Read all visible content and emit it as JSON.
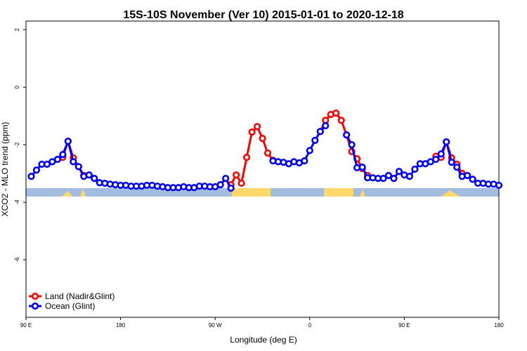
{
  "chart_data": {
    "type": "line",
    "title": "15S-10S November (Ver 10)   2015-01-01 to 2020-12-18",
    "xlabel": "Longitude (deg E)",
    "ylabel": "XCO2 - MLO trend (ppm)",
    "xlim": [
      90,
      540
    ],
    "ylim": [
      -8,
      2.3
    ],
    "xticks": [
      {
        "value": 90,
        "label": "90 E"
      },
      {
        "value": 180,
        "label": "180"
      },
      {
        "value": 270,
        "label": "90 W"
      },
      {
        "value": 360,
        "label": "0"
      },
      {
        "value": 450,
        "label": "90 E"
      },
      {
        "value": 540,
        "label": "180"
      }
    ],
    "yticks": [
      -6,
      -4,
      -2,
      0,
      2
    ],
    "legend": "bottom-left",
    "x": [
      95,
      100,
      105,
      110,
      115,
      120,
      125,
      130,
      135,
      140,
      145,
      150,
      155,
      160,
      165,
      170,
      175,
      180,
      185,
      190,
      195,
      200,
      205,
      210,
      215,
      220,
      225,
      230,
      235,
      240,
      245,
      250,
      255,
      260,
      265,
      270,
      275,
      280,
      285,
      290,
      295,
      300,
      305,
      310,
      315,
      320,
      325,
      330,
      335,
      340,
      345,
      350,
      355,
      360,
      365,
      370,
      375,
      380,
      385,
      390,
      395,
      400,
      405,
      410,
      415,
      420,
      425,
      430,
      435,
      440,
      445,
      450,
      455,
      460,
      465,
      470,
      475,
      480,
      485,
      490,
      495,
      500,
      505,
      510,
      515,
      520,
      525,
      530,
      535,
      540
    ],
    "series": [
      {
        "name": "Land (Nadir&Glint)",
        "color": "#ff0000",
        "values": [
          null,
          null,
          null,
          null,
          null,
          -2.51,
          -2.44,
          -1.88,
          -2.46,
          -2.76,
          -3.07,
          null,
          null,
          null,
          null,
          null,
          null,
          null,
          null,
          null,
          null,
          null,
          null,
          null,
          null,
          null,
          null,
          null,
          null,
          null,
          null,
          null,
          null,
          null,
          null,
          null,
          null,
          null,
          -3.39,
          -3.05,
          -3.34,
          -2.44,
          -1.56,
          -1.37,
          -1.78,
          -2.29,
          -2.54,
          null,
          null,
          null,
          null,
          null,
          null,
          null,
          null,
          -1.54,
          -1.15,
          -0.95,
          -0.9,
          -1.15,
          -1.66,
          -2.24,
          -2.49,
          -2.83,
          -3.07,
          null,
          null,
          null,
          null,
          null,
          null,
          null,
          null,
          null,
          null,
          null,
          null,
          -2.4,
          -2.44,
          -1.9,
          -2.46,
          -2.68,
          -3.0,
          null,
          null,
          null,
          null,
          null,
          null,
          null
        ]
      },
      {
        "name": "Ocean (Glint)",
        "color": "#0000ff",
        "values": [
          -3.1,
          -2.88,
          -2.68,
          -2.68,
          -2.59,
          -2.51,
          -2.34,
          -1.88,
          -2.59,
          -2.76,
          -3.1,
          -3.05,
          -3.17,
          -3.32,
          -3.34,
          -3.37,
          -3.39,
          -3.41,
          -3.41,
          -3.44,
          -3.44,
          -3.44,
          -3.41,
          -3.41,
          -3.44,
          -3.46,
          -3.49,
          -3.49,
          -3.49,
          -3.46,
          -3.49,
          -3.49,
          -3.44,
          -3.44,
          -3.46,
          -3.46,
          -3.39,
          -3.17,
          -3.51,
          null,
          null,
          null,
          null,
          null,
          null,
          null,
          -2.56,
          -2.59,
          -2.61,
          -2.66,
          -2.59,
          -2.63,
          -2.56,
          -2.2,
          -1.85,
          -1.54,
          -1.34,
          null,
          null,
          null,
          -1.66,
          -2.0,
          -2.8,
          -2.78,
          -3.15,
          -3.15,
          -3.17,
          -3.17,
          -3.07,
          -3.17,
          -2.93,
          -3.05,
          -3.1,
          -2.85,
          -2.66,
          -2.66,
          -2.59,
          -2.51,
          -2.32,
          -1.9,
          -2.61,
          -2.78,
          -3.1,
          -3.07,
          -3.2,
          -3.34,
          -3.34,
          -3.37,
          -3.37,
          -3.41
        ]
      }
    ]
  }
}
